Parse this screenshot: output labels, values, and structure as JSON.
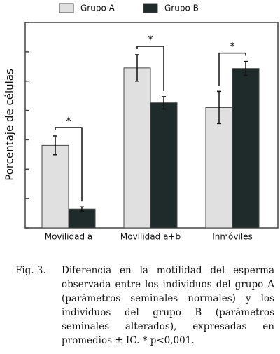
{
  "chart_data": {
    "type": "bar",
    "y_label": "Porcentaje de células",
    "categories": [
      "Movilidad a",
      "Movilidad a+b",
      "Inmóviles"
    ],
    "series": [
      {
        "name": "Grupo A",
        "color": "#e0e0e0",
        "values": [
          2.81,
          5.45,
          4.1
        ],
        "errors": [
          0.32,
          0.45,
          0.55
        ]
      },
      {
        "name": "Grupo B",
        "color": "#1f2b2b",
        "values": [
          0.64,
          4.26,
          5.43
        ],
        "errors": [
          0.07,
          0.21,
          0.24
        ]
      }
    ],
    "annotations": [
      "*",
      "*",
      "*"
    ],
    "ylim": [
      0,
      7
    ],
    "yticks": [
      0,
      1,
      2,
      3,
      4,
      5,
      6,
      7
    ]
  },
  "caption": {
    "label": "Fig. 3.",
    "text": "Diferencia en la motilidad del esperma observada entre los individuos del grupo A (parámetros seminales normales) y los individuos del grupo B (parámetros seminales alterados), expresadas en promedios ± IC. * p<0,001."
  }
}
